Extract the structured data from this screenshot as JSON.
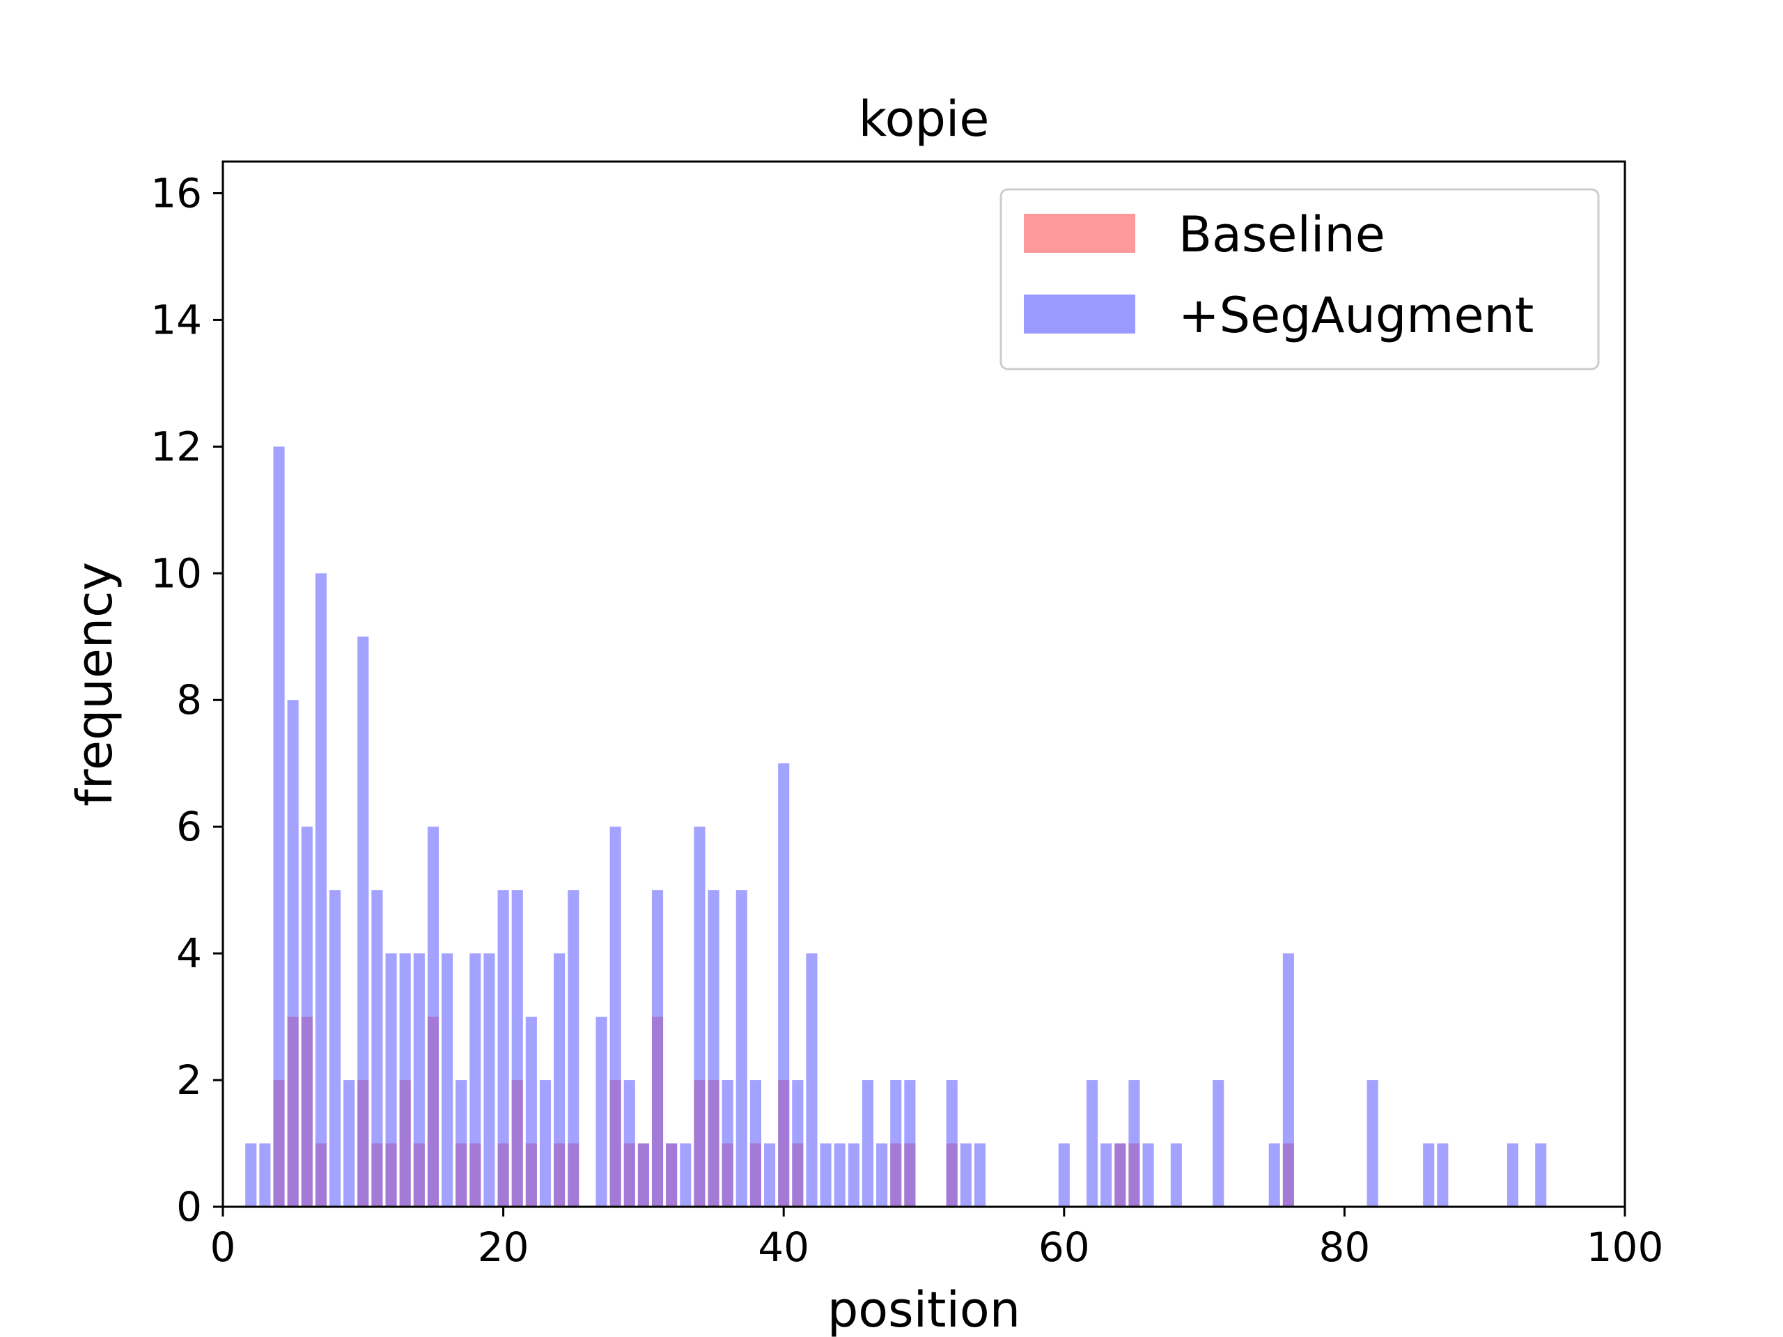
{
  "chart_data": {
    "type": "bar",
    "title": "kopie",
    "xlabel": "position",
    "ylabel": "frequency",
    "xlim": [
      0,
      100
    ],
    "ylim": [
      0,
      16.5
    ],
    "xticks": [
      0,
      20,
      40,
      60,
      80,
      100
    ],
    "yticks": [
      0,
      2,
      4,
      6,
      8,
      10,
      12,
      14,
      16
    ],
    "legend_position": "top-right",
    "grid": false,
    "series": [
      {
        "name": "Baseline",
        "color": "#ff9999",
        "x": [
          4,
          5,
          6,
          7,
          10,
          11,
          12,
          13,
          14,
          15,
          17,
          18,
          20,
          21,
          22,
          24,
          25,
          28,
          29,
          30,
          31,
          32,
          34,
          35,
          36,
          38,
          40,
          41,
          48,
          49,
          52,
          64,
          65,
          76
        ],
        "values": [
          2,
          3,
          3,
          1,
          2,
          1,
          1,
          2,
          1,
          3,
          1,
          1,
          1,
          2,
          1,
          1,
          1,
          2,
          1,
          1,
          3,
          1,
          2,
          2,
          1,
          1,
          2,
          1,
          1,
          1,
          1,
          1,
          1,
          1
        ]
      },
      {
        "name": "+SegAugment",
        "color": "#9999ff",
        "x": [
          2,
          3,
          4,
          5,
          6,
          7,
          8,
          9,
          10,
          11,
          12,
          13,
          14,
          15,
          16,
          17,
          18,
          19,
          20,
          21,
          22,
          23,
          24,
          25,
          27,
          28,
          29,
          30,
          31,
          32,
          33,
          34,
          35,
          36,
          37,
          38,
          39,
          40,
          41,
          42,
          43,
          44,
          45,
          46,
          47,
          48,
          49,
          52,
          53,
          54,
          60,
          62,
          63,
          64,
          65,
          66,
          68,
          71,
          75,
          76,
          82,
          86,
          87,
          92,
          94
        ],
        "values": [
          1,
          1,
          12,
          8,
          6,
          10,
          5,
          2,
          9,
          5,
          4,
          4,
          4,
          6,
          4,
          2,
          4,
          4,
          5,
          5,
          3,
          2,
          4,
          5,
          3,
          6,
          2,
          1,
          5,
          1,
          1,
          6,
          5,
          2,
          5,
          2,
          1,
          7,
          2,
          4,
          1,
          1,
          1,
          2,
          1,
          2,
          2,
          2,
          1,
          1,
          1,
          2,
          1,
          1,
          2,
          1,
          1,
          2,
          1,
          4,
          2,
          1,
          1,
          1,
          1
        ]
      }
    ]
  }
}
